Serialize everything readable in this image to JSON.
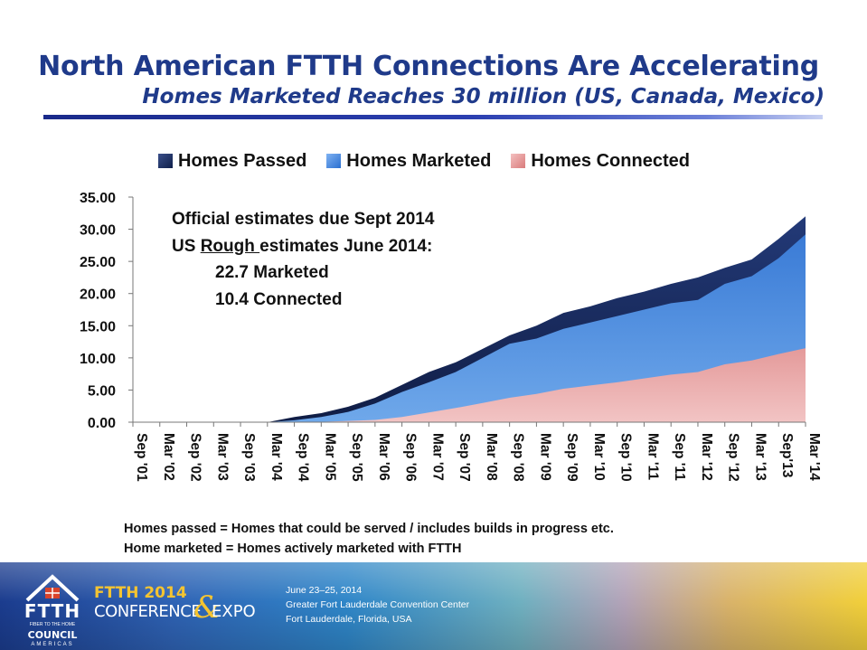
{
  "slide": {
    "title": "North American FTTH Connections Are Accelerating",
    "subtitle": "Homes Marketed Reaches 30 million (US, Canada, Mexico)"
  },
  "legend": {
    "passed": "Homes Passed",
    "marketed": "Homes Marketed",
    "connected": "Homes Connected"
  },
  "annotation": {
    "line1": "Official estimates due Sept 2014",
    "line2_prefix": "US ",
    "line2_underlined": "Rough ",
    "line2_suffix": "estimates  June 2014:",
    "line3": "22.7 Marketed",
    "line4": "10.4 Connected"
  },
  "footnotes": {
    "line1": "Homes passed = Homes that could be served / includes builds in progress etc.",
    "line2": "Home marketed = Homes actively marketed with FTTH"
  },
  "banner": {
    "logo_text": "FTTH",
    "logo_tagline": "FIBER TO THE HOME",
    "logo_council": "COUNCIL",
    "logo_region": "AMERICAS",
    "conf_year": "FTTH 2014",
    "conf_word1": "CONFERENCE",
    "conf_amp": "&",
    "conf_word2": "EXPO",
    "date": "June 23–25, 2014",
    "venue": "Greater Fort Lauderdale Convention Center",
    "city": "Fort Lauderdale, Florida, USA"
  },
  "colors": {
    "title": "#1f3a8a",
    "passed": "#1d2f66",
    "marketed": "#3f82dc",
    "connected": "#e8a3a3"
  },
  "chart_data": {
    "type": "area",
    "title": "",
    "xlabel": "",
    "ylabel": "",
    "ylim": [
      0,
      35
    ],
    "y_ticks": [
      "35.00",
      "30.00",
      "25.00",
      "20.00",
      "15.00",
      "10.00",
      "5.00",
      "0.00"
    ],
    "y_tick_values": [
      35,
      30,
      25,
      20,
      15,
      10,
      5,
      0
    ],
    "x": [
      "Sep '01",
      "Mar '02",
      "Sep '02",
      "Mar '03",
      "Sep '03",
      "Mar '04",
      "Sep '04",
      "Mar '05",
      "Sep '05",
      "Mar '06",
      "Sep '06",
      "Mar '07",
      "Sep '07",
      "Mar '08",
      "Sep '08",
      "Mar '09",
      "Sep '09",
      "Mar '10",
      "Sep '10",
      "Mar '11",
      "Sep '11",
      "Mar '12",
      "Sep '12",
      "Mar '13",
      "Sep'13",
      "Mar '14"
    ],
    "legend_position": "top",
    "grid": false,
    "series": [
      {
        "name": "Homes Passed",
        "values": [
          0,
          0,
          0,
          0,
          0,
          0,
          0.8,
          1.4,
          2.4,
          3.8,
          5.8,
          7.8,
          9.3,
          11.4,
          13.5,
          15,
          17,
          18,
          19.3,
          20.3,
          21.5,
          22.5,
          24,
          25.3,
          28.5,
          32
        ]
      },
      {
        "name": "Homes Marketed",
        "values": [
          0,
          0,
          0,
          0,
          0,
          0,
          0.3,
          0.8,
          1.6,
          2.9,
          4.7,
          6.2,
          7.8,
          10,
          12.2,
          13,
          14.5,
          15.5,
          16.5,
          17.5,
          18.5,
          19,
          21.5,
          22.7,
          25.5,
          29.2
        ]
      },
      {
        "name": "Homes Connected",
        "values": [
          0,
          0,
          0,
          0,
          0,
          0,
          0,
          0.05,
          0.2,
          0.35,
          0.8,
          1.5,
          2.2,
          3,
          3.8,
          4.4,
          5.2,
          5.7,
          6.2,
          6.8,
          7.4,
          7.8,
          9,
          9.6,
          10.6,
          11.5
        ]
      }
    ]
  }
}
